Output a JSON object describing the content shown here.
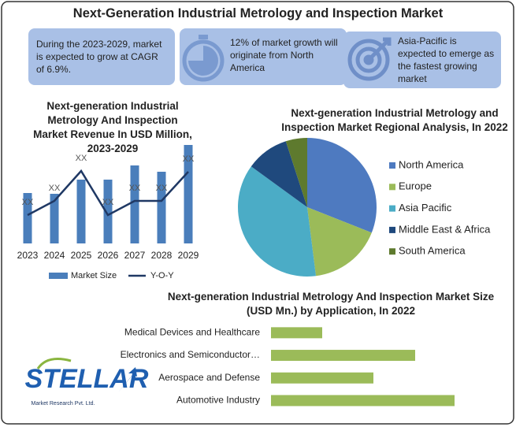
{
  "title": "Next-Generation Industrial Metrology and Inspection Market",
  "highlights": [
    "During the 2023-2029, market is expected to grow at CAGR of 6.9%.",
    "12% of market growth will originate from North America",
    "Asia-Pacific is expected to emerge as the fastest growing market"
  ],
  "logo": {
    "name": "STELLAR",
    "tagline": "Market Research Pvt. Ltd."
  },
  "chart_data": [
    {
      "type": "bar",
      "title": "Next-generation Industrial Metrology And Inspection Market Revenue In USD Million, 2023-2029",
      "categories": [
        "2023",
        "2024",
        "2025",
        "2026",
        "2027",
        "2028",
        "2029"
      ],
      "series": [
        {
          "name": "Market Size",
          "type": "bar",
          "color": "#4a7ebb",
          "values": [
            64,
            63,
            81,
            81,
            99,
            91,
            125
          ]
        },
        {
          "name": "Y-O-Y",
          "type": "line",
          "color": "#1f3864",
          "values": [
            36,
            54,
            92,
            36,
            54,
            54,
            91
          ],
          "value_labels": [
            "XX",
            "XX",
            "XX",
            "XX",
            "XX",
            "XX",
            "XX"
          ]
        }
      ],
      "ylim": [
        0,
        130
      ],
      "legend": "bottom"
    },
    {
      "type": "pie",
      "title": "Next-generation Industrial Metrology and Inspection Market Regional Analysis, In 2022",
      "categories": [
        "North America",
        "Europe",
        "Asia Pacific",
        "Middle East & Africa",
        "South America"
      ],
      "values": [
        31,
        17,
        37,
        10,
        5
      ],
      "colors": [
        "#4e7ac0",
        "#9bbb59",
        "#4bacc6",
        "#1f497d",
        "#5e7a2e"
      ],
      "legend": "right"
    },
    {
      "type": "bar",
      "orientation": "horizontal",
      "title": "Next-generation Industrial Metrology And Inspection Market Size (USD Mn.) by Application, In 2022",
      "categories": [
        "Medical Devices and Healthcare",
        "Electronics and Semiconductor…",
        "Aerospace and Defense",
        "Automotive Industry"
      ],
      "values": [
        65,
        183,
        130,
        233
      ],
      "color": "#9bbb59",
      "xlim": [
        0,
        250
      ]
    }
  ]
}
